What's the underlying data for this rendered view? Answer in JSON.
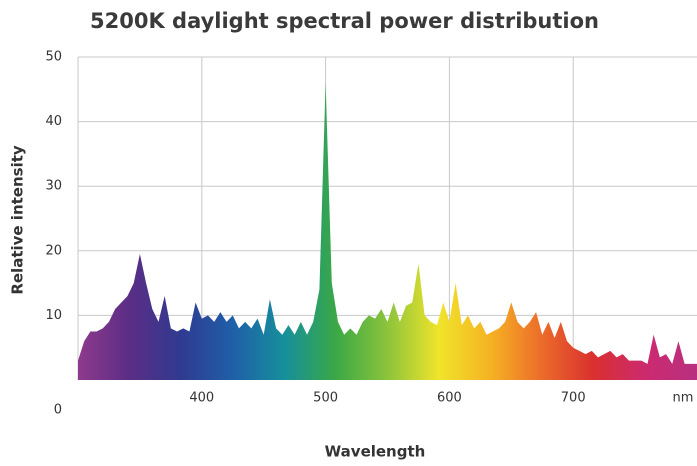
{
  "chart_data": {
    "type": "area",
    "title": "5200K daylight spectral power distribution",
    "x_label": "Wavelength",
    "y_label": "Relative intensity",
    "x_unit": "nm",
    "x": [
      300,
      305,
      310,
      315,
      320,
      325,
      330,
      335,
      340,
      345,
      350,
      355,
      360,
      365,
      370,
      375,
      380,
      385,
      390,
      395,
      400,
      405,
      410,
      415,
      420,
      425,
      430,
      435,
      440,
      445,
      450,
      455,
      460,
      465,
      470,
      475,
      480,
      485,
      490,
      495,
      500,
      505,
      510,
      515,
      520,
      525,
      530,
      535,
      540,
      545,
      550,
      555,
      560,
      565,
      570,
      575,
      580,
      585,
      590,
      595,
      600,
      605,
      610,
      615,
      620,
      625,
      630,
      635,
      640,
      645,
      650,
      655,
      660,
      665,
      670,
      675,
      680,
      685,
      690,
      695,
      700,
      705,
      710,
      715,
      720,
      725,
      730,
      735,
      740,
      745,
      750,
      755,
      760,
      765,
      770,
      775,
      780,
      785,
      790,
      795,
      800
    ],
    "values": [
      3,
      6,
      7.5,
      7.5,
      8,
      9,
      11,
      12,
      13,
      15,
      19.5,
      15,
      11,
      9,
      13,
      8,
      7.5,
      8,
      7.5,
      12,
      9.5,
      10,
      9,
      10.5,
      9,
      10,
      8,
      9,
      8,
      9.5,
      7,
      12.5,
      8,
      7,
      8.5,
      7,
      9,
      7,
      9,
      14,
      46,
      15,
      9,
      7,
      8,
      7,
      9,
      10,
      9.5,
      11,
      9,
      12,
      9,
      11.5,
      12,
      18,
      10,
      9,
      8.5,
      12,
      9,
      15,
      8.5,
      10,
      8,
      9,
      7,
      7.5,
      8,
      9,
      12,
      9,
      8,
      9,
      10.5,
      7,
      9,
      6.5,
      9,
      6,
      5,
      4.5,
      4,
      4.5,
      3.5,
      4,
      4.5,
      3.5,
      4,
      3,
      3,
      3,
      2.5,
      7,
      3.5,
      4,
      2.5,
      6,
      2.5,
      2.5,
      2.5
    ],
    "gradient_colors": [
      "#8e3a8c",
      "#5b2d86",
      "#2f3b90",
      "#1f5fa8",
      "#168f9c",
      "#3aa845",
      "#8cc43c",
      "#f0e42a",
      "#f5b223",
      "#ec6b2a",
      "#d9302f",
      "#cc2a6f",
      "#b8307f"
    ],
    "xlim": [
      300,
      800
    ],
    "xticks": [
      400,
      500,
      600,
      700
    ],
    "ylim": [
      0,
      50
    ],
    "yticks": [
      0,
      10,
      20,
      30,
      40,
      50
    ],
    "grid": true
  }
}
